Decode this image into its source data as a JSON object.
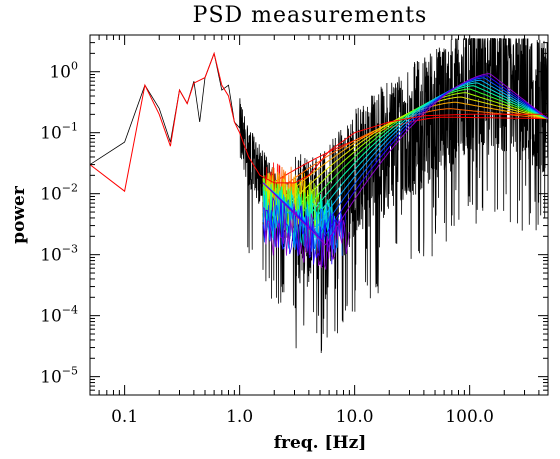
{
  "chart_data": {
    "type": "line",
    "title": "PSD measurements",
    "xlabel": "freq. [Hz]",
    "ylabel": "power",
    "xscale": "log",
    "yscale": "log",
    "xlim": [
      0.05,
      480
    ],
    "ylim": [
      5e-06,
      4
    ],
    "x_ticks": [
      {
        "value": 0.1,
        "label": "0.1"
      },
      {
        "value": 1,
        "label": "1.0"
      },
      {
        "value": 10,
        "label": "10.0"
      },
      {
        "value": 100,
        "label": "100.0"
      }
    ],
    "y_ticks": [
      {
        "value": 1,
        "base": "10",
        "exp": "0"
      },
      {
        "value": 0.1,
        "base": "10",
        "exp": "−1"
      },
      {
        "value": 0.01,
        "base": "10",
        "exp": "−2"
      },
      {
        "value": 0.001,
        "base": "10",
        "exp": "−3"
      },
      {
        "value": 0.0001,
        "base": "10",
        "exp": "−4"
      },
      {
        "value": 1e-05,
        "base": "10",
        "exp": "−5"
      }
    ],
    "grid": false,
    "legend": "none",
    "series": [
      {
        "color": "#000000",
        "kind": "measured PSD (noisy)",
        "points": [
          [
            0.05,
            0.03
          ],
          [
            0.1,
            0.07
          ],
          [
            0.15,
            0.6
          ],
          [
            0.2,
            0.25
          ],
          [
            0.25,
            0.07
          ],
          [
            0.3,
            0.5
          ],
          [
            0.35,
            0.3
          ],
          [
            0.4,
            0.7
          ],
          [
            0.45,
            0.15
          ],
          [
            0.5,
            0.8
          ],
          [
            0.6,
            2.0
          ],
          [
            0.7,
            0.5
          ],
          [
            0.8,
            0.6
          ],
          [
            0.9,
            0.15
          ],
          [
            1.0,
            0.12
          ],
          [
            1.2,
            0.04
          ],
          [
            1.5,
            0.02
          ],
          [
            2.0,
            0.008
          ],
          [
            3.0,
            0.004
          ],
          [
            4.0,
            0.003
          ],
          [
            5.0,
            0.004
          ],
          [
            7.0,
            0.008
          ],
          [
            10.0,
            0.02
          ],
          [
            20.0,
            0.06
          ],
          [
            40.0,
            0.15
          ],
          [
            70.0,
            0.3
          ],
          [
            100.0,
            0.5
          ],
          [
            140.0,
            0.8
          ],
          [
            200.0,
            0.6
          ],
          [
            300.0,
            0.4
          ],
          [
            480.0,
            0.25
          ]
        ]
      },
      {
        "color": "#ff0000",
        "kind": "smoothed / model (red)",
        "points": [
          [
            0.05,
            0.03
          ],
          [
            0.1,
            0.011
          ],
          [
            0.15,
            0.6
          ],
          [
            0.2,
            0.2
          ],
          [
            0.25,
            0.06
          ],
          [
            0.3,
            0.5
          ],
          [
            0.35,
            0.3
          ],
          [
            0.4,
            0.65
          ],
          [
            0.5,
            0.8
          ],
          [
            0.6,
            2.0
          ],
          [
            0.7,
            0.6
          ],
          [
            0.8,
            0.4
          ],
          [
            0.9,
            0.15
          ],
          [
            1.0,
            0.1
          ],
          [
            1.2,
            0.04
          ],
          [
            1.5,
            0.02
          ],
          [
            2.0,
            0.015
          ],
          [
            3.0,
            0.015
          ],
          [
            4.0,
            0.02
          ],
          [
            6.0,
            0.05
          ],
          [
            10.0,
            0.1
          ],
          [
            20.0,
            0.15
          ],
          [
            40.0,
            0.19
          ],
          [
            100.0,
            0.2
          ],
          [
            200.0,
            0.2
          ],
          [
            480.0,
            0.2
          ]
        ]
      }
    ],
    "model_curves": {
      "colors": [
        "#ff0000",
        "#ff6600",
        "#ffaa00",
        "#e8e800",
        "#aaff00",
        "#33ff33",
        "#00ffaa",
        "#00dddd",
        "#00aaff",
        "#0055ff",
        "#2200ff",
        "#8800cc"
      ],
      "note": "family of fitted PSD curves shifting to higher peak frequency"
    }
  }
}
